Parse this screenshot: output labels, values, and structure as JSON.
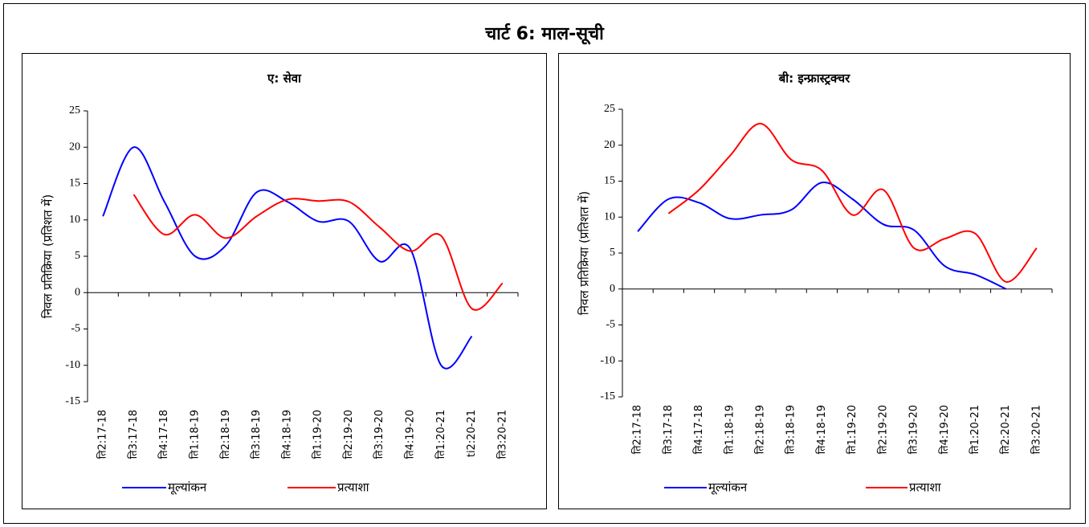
{
  "title": "चार्ट 6: माल-सूची",
  "chart_data": [
    {
      "type": "line",
      "title": "ए: सेवा",
      "y_label": "निवल प्रतिक्रिया (प्रतिशत में)",
      "categories": [
        "ति2:17-18",
        "ति3:17-18",
        "ति4:17-18",
        "ति1:18-19",
        "ति2:18-19",
        "ति3:18-19",
        "ति4:18-19",
        "ति1:19-20",
        "ति2:19-20",
        "ति3:19-20",
        "ति4:19-20",
        "ति1:20-21",
        "ti2:20-21",
        "ति3:20-21"
      ],
      "series": [
        {
          "name": "मूल्यांकन",
          "color": "#0000ff",
          "values": [
            10.5,
            20,
            12.5,
            5,
            6.5,
            13.8,
            12.5,
            9.8,
            9.8,
            4.3,
            6,
            -10,
            -6,
            null
          ]
        },
        {
          "name": "प्रत्याशा",
          "color": "#ff0000",
          "values": [
            null,
            13.5,
            8,
            10.7,
            7.5,
            10.5,
            12.8,
            12.6,
            12.5,
            9,
            5.7,
            7.8,
            -2.2,
            1.3
          ]
        }
      ],
      "ylim": [
        -15,
        25
      ],
      "yticks": [
        -15,
        -10,
        -5,
        0,
        5,
        10,
        15,
        20,
        25
      ]
    },
    {
      "type": "line",
      "title": "बी: इन्फ्रास्ट्रक्चर",
      "y_label": "निवल प्रतिक्रिया (प्रतिशत में)",
      "categories": [
        "ति2:17-18",
        "ति3:17-18",
        "ति4:17-18",
        "ति1:18-19",
        "ति2:18-19",
        "ति3:18-19",
        "ति4:18-19",
        "ति1:19-20",
        "ति2:19-20",
        "ति3:19-20",
        "ति4:19-20",
        "ति1:20-21",
        "ति2:20-21",
        "ति3:20-21"
      ],
      "series": [
        {
          "name": "मूल्यांकन",
          "color": "#0000ff",
          "values": [
            8,
            12.5,
            12,
            9.8,
            10.3,
            11,
            14.8,
            12.5,
            9,
            8.2,
            3.2,
            2,
            0,
            null
          ]
        },
        {
          "name": "प्रत्याशा",
          "color": "#ff0000",
          "values": [
            null,
            10.5,
            13.8,
            18.5,
            23,
            18,
            16.5,
            10.3,
            13.8,
            5.7,
            7,
            7.7,
            1,
            5.7
          ]
        }
      ],
      "ylim": [
        -15,
        25
      ],
      "yticks": [
        -15,
        -10,
        -5,
        0,
        5,
        10,
        15,
        20,
        25
      ]
    }
  ]
}
